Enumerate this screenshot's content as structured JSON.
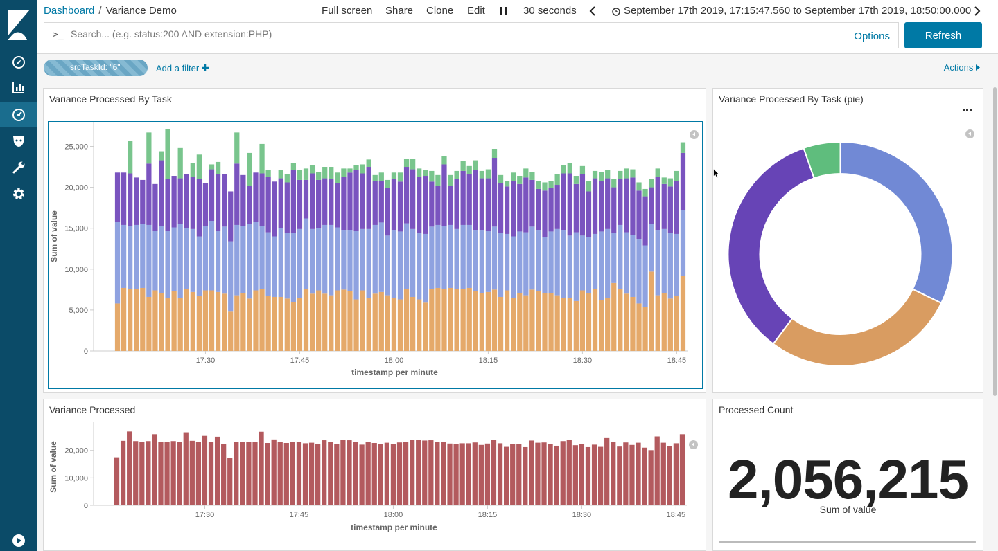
{
  "breadcrumb": {
    "parent": "Dashboard",
    "separator": "/",
    "current": "Variance Demo"
  },
  "top_menu": {
    "full_screen": "Full screen",
    "share": "Share",
    "clone": "Clone",
    "edit": "Edit",
    "interval": "30 seconds"
  },
  "time_range": {
    "text": "September 17th 2019, 17:15:47.560 to September 17th 2019, 18:50:00.000"
  },
  "query": {
    "prompt": ">_",
    "placeholder": "Search... (e.g. status:200 AND extension:PHP)",
    "value": "",
    "options_label": "Options",
    "refresh_label": "Refresh"
  },
  "filters": {
    "pills": [
      {
        "label": "srcTaskId: \"6\""
      }
    ],
    "add_filter_label": "Add a filter",
    "actions_label": "Actions"
  },
  "colors": {
    "brand": "#0b4b68",
    "accent": "#0079a5",
    "series_orange": "#e5a96a",
    "series_blue": "#8fa2e0",
    "series_purple": "#7a54bf",
    "series_green": "#79c58d",
    "single_bar": "#b35a5e",
    "pie_blue": "#7189d5",
    "pie_orange": "#d99c61",
    "pie_purple": "#6744b6",
    "pie_green": "#5fbd7d"
  },
  "panels": {
    "stacked": {
      "title": "Variance Processed By Task"
    },
    "pie": {
      "title": "Variance Processed By Task (pie)"
    },
    "single": {
      "title": "Variance Processed"
    },
    "metric": {
      "title": "Processed Count",
      "value": "2,056,215",
      "label": "Sum of value"
    }
  },
  "chart_data": [
    {
      "type": "bar",
      "stacked": true,
      "xlabel": "timestamp per minute",
      "ylabel": "Sum of value",
      "ylim": [
        0,
        28000
      ],
      "yticks": [
        0,
        5000,
        10000,
        15000,
        20000,
        25000
      ],
      "ytick_labels": [
        "0",
        "5,000",
        "10,000",
        "15,000",
        "20,000",
        "25,000"
      ],
      "xticks": [
        "17:30",
        "17:45",
        "18:00",
        "18:15",
        "18:30",
        "18:45"
      ],
      "xtick_minutes": [
        30,
        45,
        60,
        75,
        90,
        105
      ],
      "x_start_minute": 16,
      "series_colors": [
        "#e5a96a",
        "#8fa2e0",
        "#7a54bf",
        "#79c58d"
      ],
      "series": [
        {
          "values": [
            5800,
            7700,
            7600,
            7600,
            7700,
            6600,
            7400,
            7100,
            6500,
            7300,
            6500,
            7600,
            7200,
            6700,
            7400,
            7400,
            7200,
            7000,
            4800,
            6800,
            7100,
            6400,
            7400,
            7600,
            6700,
            6600,
            6600,
            6400,
            6000,
            6500,
            7600,
            7000,
            7400,
            7000,
            6800,
            7400,
            7500,
            7300,
            6300,
            7400,
            6500,
            7000,
            7200,
            6800,
            6500,
            6300,
            7600,
            6600,
            6300,
            5900,
            7600,
            7700,
            7600,
            7700,
            7600,
            7600,
            7700,
            7300,
            7100,
            7200,
            7500,
            6600,
            7400,
            6500,
            7100,
            6800,
            7500,
            7300,
            7100,
            7100,
            6800,
            6500,
            6500,
            6100,
            7400,
            7100,
            7600,
            6200,
            6500,
            8300,
            7600,
            7000,
            6600,
            5800,
            5400,
            9700,
            6800,
            7100,
            6400,
            6700,
            9200
          ]
        },
        {
          "values": [
            10000,
            7700,
            7700,
            7800,
            7800,
            8800,
            7300,
            8200,
            8200,
            7800,
            9000,
            7400,
            7700,
            7300,
            7900,
            8500,
            7500,
            8200,
            8600,
            8600,
            8200,
            9100,
            8400,
            7700,
            7800,
            7400,
            8400,
            8000,
            8400,
            8400,
            8600,
            7900,
            7600,
            8400,
            8600,
            7700,
            7300,
            7500,
            8400,
            7500,
            8400,
            8400,
            8500,
            7300,
            8300,
            8300,
            8000,
            8300,
            8100,
            8400,
            7600,
            7700,
            7700,
            7700,
            7300,
            7800,
            7700,
            7500,
            7700,
            7500,
            7700,
            7800,
            6900,
            7500,
            7500,
            7700,
            7700,
            7500,
            6800,
            7500,
            8100,
            8300,
            7600,
            8400,
            6700,
            6800,
            6700,
            8400,
            8400,
            6100,
            7800,
            7500,
            7600,
            7900,
            7500,
            5800,
            8000,
            7800,
            8000,
            7600,
            8000
          ]
        },
        {
          "values": [
            6000,
            6400,
            6400,
            5800,
            5400,
            7500,
            5700,
            8000,
            6300,
            6300,
            5600,
            6600,
            6400,
            7000,
            5200,
            6300,
            6900,
            6400,
            6100,
            7500,
            6200,
            4700,
            6000,
            6400,
            6800,
            6700,
            6100,
            6200,
            7700,
            6000,
            4700,
            6800,
            5900,
            5700,
            5600,
            5400,
            6500,
            7000,
            7400,
            6800,
            7600,
            5400,
            5100,
            5800,
            6200,
            6100,
            6900,
            7300,
            6900,
            7100,
            5500,
            4800,
            7500,
            4800,
            6100,
            6600,
            6200,
            7300,
            6300,
            6400,
            8400,
            6100,
            5800,
            6800,
            5800,
            6700,
            5700,
            5000,
            5700,
            5300,
            5400,
            6900,
            7600,
            5900,
            7500,
            5600,
            6800,
            6200,
            6200,
            5600,
            5600,
            6600,
            7000,
            5900,
            6000,
            4500,
            6500,
            5500,
            5700,
            6500,
            7000
          ]
        },
        {
          "values": [
            0,
            0,
            4000,
            0,
            0,
            3800,
            0,
            1100,
            6100,
            0,
            3700,
            0,
            1700,
            3000,
            0,
            600,
            1500,
            0,
            0,
            3800,
            0,
            4000,
            0,
            3600,
            800,
            0,
            1000,
            1000,
            900,
            1200,
            1400,
            1000,
            1000,
            1400,
            1500,
            1300,
            1000,
            500,
            600,
            1100,
            900,
            700,
            1000,
            1000,
            800,
            1100,
            1000,
            1300,
            1000,
            700,
            1300,
            1300,
            1000,
            1300,
            1000,
            1200,
            1000,
            1200,
            900,
            1100,
            1100,
            1000,
            700,
            1000,
            1000,
            1100,
            1000,
            1000,
            1000,
            900,
            1300,
            1000,
            1300,
            1000,
            1000,
            1300,
            900,
            1100,
            1000,
            1000,
            1000,
            1200,
            1000,
            1000,
            900,
            1000,
            1000,
            800,
            1000,
            1200,
            1300
          ]
        }
      ]
    },
    {
      "type": "pie",
      "donut": true,
      "categories": [
        "blue",
        "orange",
        "purple",
        "green"
      ],
      "values": [
        32.2,
        28.0,
        34.5,
        5.3
      ],
      "colors": [
        "#7189d5",
        "#d99c61",
        "#6744b6",
        "#5fbd7d"
      ]
    },
    {
      "type": "bar",
      "xlabel": "timestamp per minute",
      "ylabel": "Sum of value",
      "ylim": [
        0,
        28000
      ],
      "yticks": [
        0,
        10000,
        20000
      ],
      "ytick_labels": [
        "0",
        "10,000",
        "20,000"
      ],
      "xticks": [
        "17:30",
        "17:45",
        "18:00",
        "18:15",
        "18:30",
        "18:45"
      ],
      "xtick_minutes": [
        30,
        45,
        60,
        75,
        90,
        105
      ],
      "x_start_minute": 16,
      "color": "#b35a5e",
      "values": [
        17500,
        23500,
        26900,
        23400,
        23100,
        23400,
        25900,
        23200,
        23100,
        23400,
        23000,
        26600,
        23500,
        23000,
        25300,
        23200,
        25000,
        22400,
        17400,
        23200,
        23100,
        23100,
        23200,
        26800,
        22700,
        24000,
        23100,
        22700,
        23100,
        23000,
        22600,
        22800,
        22300,
        23700,
        23000,
        22400,
        23800,
        23700,
        23100,
        22100,
        23200,
        22700,
        22300,
        22800,
        22300,
        22900,
        23200,
        23900,
        23800,
        23600,
        23700,
        23100,
        23000,
        22500,
        22400,
        22600,
        22600,
        22900,
        22000,
        22500,
        23800,
        22600,
        21300,
        22200,
        22300,
        21200,
        23600,
        22800,
        22900,
        22400,
        21700,
        23400,
        23800,
        21900,
        22300,
        21200,
        22100,
        21300,
        24500,
        23200,
        21400,
        22900,
        22000,
        22800,
        21000,
        20100,
        25100,
        22800,
        21600,
        22600,
        25900
      ]
    }
  ]
}
